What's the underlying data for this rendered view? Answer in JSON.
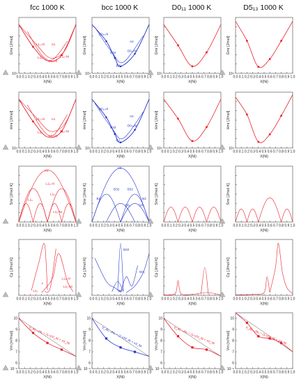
{
  "columns": [
    {
      "title": "fcc 1000 K",
      "color": "#e8202a"
    },
    {
      "title": "bcc 1000 K",
      "color": "#2233cc"
    },
    {
      "title": "D0₁₁ 1000 K",
      "color": "#e8202a"
    },
    {
      "title": "D5₁₃ 1000 K",
      "color": "#e8202a"
    }
  ],
  "row_ylabels": [
    "Gmr [J/mol]",
    "Hmr [J/mol]",
    "Smr [J/mol K]",
    "Cp [J/mol K]",
    "Vm [m³/mol]"
  ],
  "xlabel": "X(Ni)",
  "xticks": [
    "0.0",
    "0.1",
    "0.2",
    "0.3",
    "0.4",
    "0.5",
    "0.6",
    "0.7",
    "0.8",
    "0.9",
    "1.0"
  ],
  "y_exp_energy": "10⁴",
  "y_exp_volume": "10⁻⁶",
  "vm_yticks": [
    "10",
    "9",
    "8",
    "7",
    "6"
  ],
  "vegard_label": "V_Al₁₋ₓNiₓ = (1-x)V_Al + xV_Ni",
  "annotations": {
    "fcc_gmr": [
      "L1₂-Al",
      "A1",
      "L1₂-Ni",
      "L1₀",
      "L1₀-Al"
    ],
    "fcc_hmr": [
      "L1₂-Al",
      "A1",
      "L1₂-Ni",
      "L1₀",
      "L1₀-Al"
    ],
    "fcc_smr": [
      "A1",
      "L1₂-Al",
      "L1₀",
      "L1₂",
      "L1₂-Ni"
    ],
    "fcc_cp": [
      "L1₂",
      "L",
      "L1₂-Al",
      "L1₂-Ni"
    ],
    "bcc_gmr": [
      "D0₃-Al",
      "A2",
      "D0₃-Ni",
      "B32",
      "B2"
    ],
    "bcc_hmr": [
      "D0₃-Al",
      "A2",
      "D0₃-Ni",
      "B32",
      "B2"
    ],
    "bcc_smr": [
      "A2",
      "B32",
      "B32",
      "B2",
      "B2",
      "D0₃",
      "D0₃"
    ],
    "bcc_cp": [
      "B32",
      "D0₃",
      "B2"
    ]
  },
  "chart_data": [
    {
      "panel": "fcc-gmr",
      "type": "line",
      "x": [
        0,
        0.25,
        0.5,
        0.75,
        1
      ],
      "values": [
        0,
        -1.6,
        -2.6,
        -2.2,
        0
      ],
      "ylabel": "Gmr [J/mol]",
      "xlabel": "X(Ni)",
      "xlim": [
        0,
        1
      ]
    },
    {
      "panel": "bcc-gmr",
      "type": "line",
      "x": [
        0,
        0.25,
        0.4,
        0.5,
        0.75,
        1
      ],
      "values": [
        0,
        -1.2,
        -2.4,
        -3.0,
        -2.1,
        0
      ],
      "ylabel": "Gmr [J/mol]",
      "xlabel": "X(Ni)",
      "xlim": [
        0,
        1
      ]
    },
    {
      "panel": "d011-gmr",
      "type": "scatter+line",
      "x": [
        0,
        0.25,
        0.5,
        0.75,
        1
      ],
      "values": [
        0,
        -1.5,
        -3.0,
        -2.0,
        0
      ],
      "ylabel": "Gmr [J/mol]",
      "xlabel": "X(Ni)",
      "xlim": [
        0,
        1
      ]
    },
    {
      "panel": "d513-gmr",
      "type": "scatter+line",
      "x": [
        0,
        0.2,
        0.4,
        0.6,
        0.8,
        1
      ],
      "values": [
        0.5,
        -1.0,
        -3.0,
        -2.4,
        -1.0,
        0.5
      ],
      "ylabel": "Gmr [J/mol]",
      "xlabel": "X(Ni)",
      "xlim": [
        0,
        1
      ]
    },
    {
      "panel": "fcc-vm",
      "type": "scatter+line",
      "x": [
        0,
        0.25,
        0.5,
        0.75,
        1
      ],
      "values": [
        10.0,
        8.7,
        7.8,
        7.2,
        6.6
      ],
      "ylabel": "Vm [m³/mol]",
      "xlabel": "X(Ni)",
      "xlim": [
        0,
        1
      ],
      "ylim": [
        6,
        10
      ]
    },
    {
      "panel": "bcc-vm",
      "type": "scatter+line",
      "x": [
        0,
        0.25,
        0.5,
        0.75,
        1
      ],
      "values": [
        10.0,
        8.2,
        7.4,
        7.0,
        6.6
      ],
      "ylabel": "Vm [m³/mol]",
      "xlabel": "X(Ni)",
      "xlim": [
        0,
        1
      ],
      "ylim": [
        6,
        10
      ]
    },
    {
      "panel": "d011-vm",
      "type": "scatter+line",
      "x": [
        0,
        0.25,
        0.5,
        0.75,
        1
      ],
      "values": [
        10.0,
        8.4,
        7.4,
        7.2,
        6.6
      ],
      "ylabel": "Vm [m³/mol]",
      "xlabel": "X(Ni)",
      "xlim": [
        0,
        1
      ],
      "ylim": [
        6,
        10
      ]
    },
    {
      "panel": "d513-vm",
      "type": "scatter+line",
      "x": [
        0,
        0.2,
        0.4,
        0.6,
        0.8,
        1
      ],
      "values": [
        10.5,
        9.6,
        8.4,
        8.2,
        7.8,
        7.0
      ],
      "ylabel": "Vm [m³/mol]",
      "xlabel": "X(Ni)",
      "xlim": [
        0,
        1
      ],
      "ylim": [
        6,
        10
      ]
    }
  ]
}
